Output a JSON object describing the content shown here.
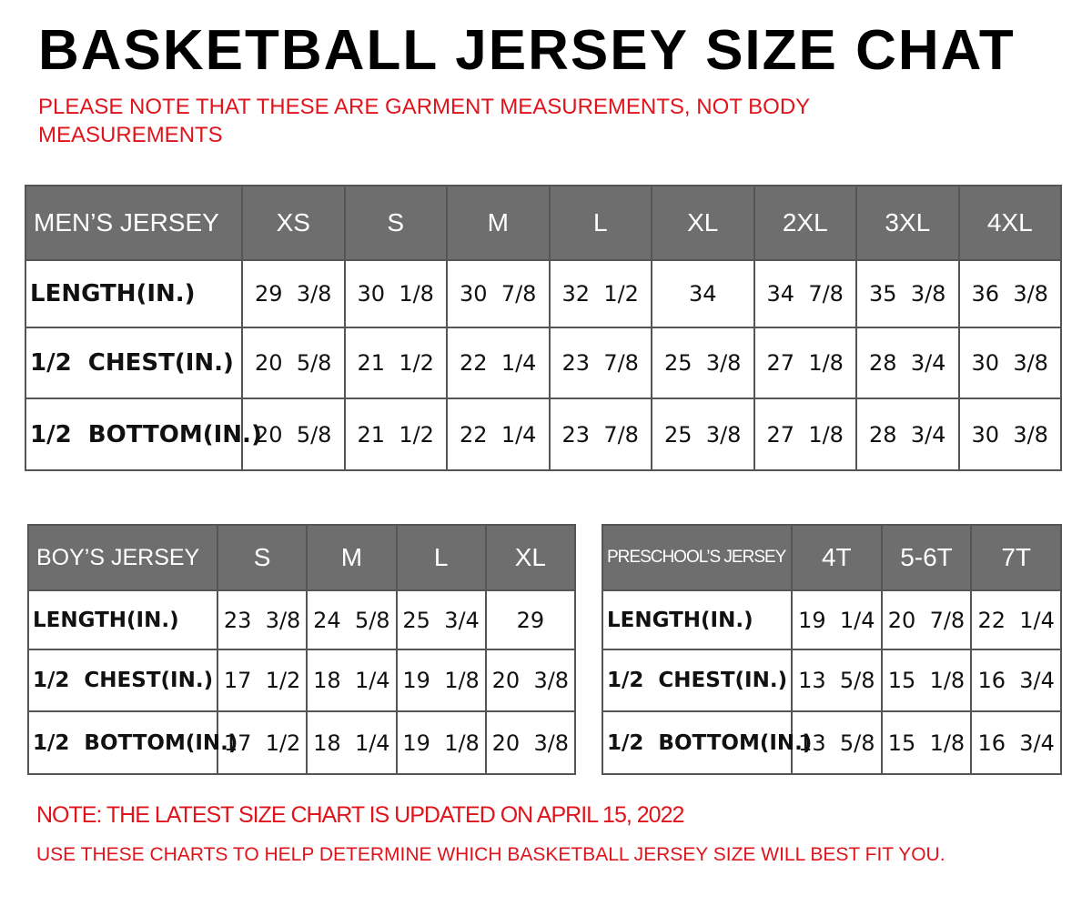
{
  "title": "BASKETBALL JERSEY SIZE CHAT",
  "note": "PLEASE NOTE THAT THESE ARE GARMENT MEASUREMENTS, NOT BODY MEASUREMENTS",
  "men": {
    "header": [
      "MEN’S JERSEY",
      "XS",
      "S",
      "M",
      "L",
      "XL",
      "2XL",
      "3XL",
      "4XL"
    ],
    "rows": [
      [
        "LENGTH(IN.)",
        "29  3/8",
        "30  1/8",
        "30  7/8",
        "32  1/2",
        "34",
        "34  7/8",
        "35  3/8",
        "36  3/8"
      ],
      [
        "1/2  CHEST(IN.)",
        "20  5/8",
        "21  1/2",
        "22  1/4",
        "23  7/8",
        "25  3/8",
        "27  1/8",
        "28  3/4",
        "30  3/8"
      ],
      [
        "1/2  BOTTOM(IN.)",
        "20  5/8",
        "21  1/2",
        "22  1/4",
        "23  7/8",
        "25  3/8",
        "27  1/8",
        "28  3/4",
        "30  3/8"
      ]
    ]
  },
  "boy": {
    "header": [
      "BOY’S JERSEY",
      "S",
      "M",
      "L",
      "XL"
    ],
    "rows": [
      [
        "LENGTH(IN.)",
        "23  3/8",
        "24  5/8",
        "25  3/4",
        "29"
      ],
      [
        "1/2  CHEST(IN.)",
        "17  1/2",
        "18  1/4",
        "19  1/8",
        "20  3/8"
      ],
      [
        "1/2  BOTTOM(IN.)",
        "17  1/2",
        "18  1/4",
        "19  1/8",
        "20  3/8"
      ]
    ]
  },
  "preschool": {
    "header": [
      "PRESCHOOL’S JERSEY",
      "4T",
      "5-6T",
      "7T"
    ],
    "rows": [
      [
        "LENGTH(IN.)",
        "19  1/4",
        "20  7/8",
        "22  1/4"
      ],
      [
        "1/2  CHEST(IN.)",
        "13  5/8",
        "15  1/8",
        "16  3/4"
      ],
      [
        "1/2  BOTTOM(IN.)",
        "13  5/8",
        "15  1/8",
        "16  3/4"
      ]
    ]
  },
  "footer": {
    "line1": "NOTE: THE LATEST SIZE CHART IS UPDATED ON APRIL 15, 2022",
    "line2": "USE THESE CHARTS TO HELP DETERMINE WHICH  BASKETBALL JERSEY  SIZE WILL BEST FIT YOU."
  },
  "colors": {
    "header_bg": "#6e6e6e",
    "note_red": "#e0141c"
  }
}
